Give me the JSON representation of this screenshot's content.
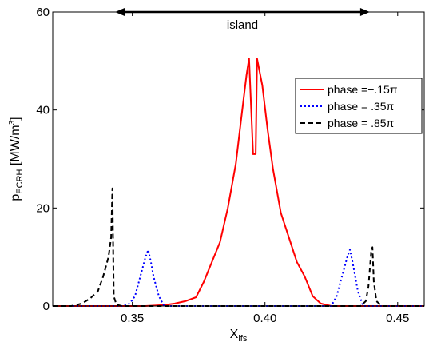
{
  "chart_data": {
    "type": "line",
    "xlabel": "X",
    "xlabel_sub": "lfs",
    "ylabel": "p",
    "ylabel_sub": "ECRH",
    "ylabel_unit_pre": " [MW/m",
    "ylabel_unit_sup": "3",
    "ylabel_unit_post": "]",
    "xlim": [
      0.32,
      0.46
    ],
    "ylim": [
      0,
      60
    ],
    "xticks": [
      "0.35",
      "0.40",
      "0.45"
    ],
    "xtick_values": [
      0.35,
      0.4,
      0.45
    ],
    "yticks": [
      "0",
      "20",
      "40",
      "60"
    ],
    "ytick_values": [
      0,
      20,
      40,
      60
    ],
    "grid": false,
    "legend_position": "top-right",
    "annotation": {
      "text": "island",
      "arrow_from_x": 0.3435,
      "arrow_to_x": 0.4395,
      "arrow_y": 60
    },
    "series": [
      {
        "name": "phase =−.15π",
        "color": "#ff0000",
        "style": "solid",
        "x": [
          0.32,
          0.355,
          0.362,
          0.366,
          0.37,
          0.374,
          0.377,
          0.38,
          0.383,
          0.386,
          0.389,
          0.391,
          0.393,
          0.394,
          0.3955,
          0.3965,
          0.397,
          0.399,
          0.401,
          0.403,
          0.406,
          0.409,
          0.412,
          0.415,
          0.418,
          0.421,
          0.425,
          0.46
        ],
        "y": [
          0,
          0,
          0.2,
          0.5,
          1,
          1.8,
          5,
          9,
          13,
          20,
          29,
          38,
          47,
          50.5,
          31,
          31,
          50.5,
          45,
          36,
          28,
          19,
          14,
          9,
          6,
          2,
          0.5,
          0,
          0
        ]
      },
      {
        "name": "phase = .35π",
        "color": "#0000ff",
        "style": "dotted",
        "x": [
          0.32,
          0.346,
          0.349,
          0.351,
          0.353,
          0.355,
          0.356,
          0.357,
          0.358,
          0.36,
          0.362,
          0.425,
          0.427,
          0.429,
          0.431,
          0.432,
          0.433,
          0.435,
          0.437,
          0.46
        ],
        "y": [
          0,
          0,
          0.5,
          2,
          6,
          10,
          11.5,
          9,
          6,
          2,
          0,
          0,
          2,
          6,
          10,
          11.5,
          9,
          3,
          0,
          0
        ]
      },
      {
        "name": "phase = .85π",
        "color": "#000000",
        "style": "dashed",
        "x": [
          0.32,
          0.327,
          0.331,
          0.334,
          0.337,
          0.339,
          0.341,
          0.342,
          0.3425,
          0.343,
          0.344,
          0.346,
          0.436,
          0.438,
          0.439,
          0.44,
          0.4405,
          0.441,
          0.442,
          0.444,
          0.46
        ],
        "y": [
          0,
          0,
          0.5,
          1.5,
          3,
          6,
          10,
          14,
          24,
          2,
          0.3,
          0,
          0,
          1,
          4,
          11,
          12,
          5,
          1,
          0,
          0
        ]
      }
    ]
  }
}
